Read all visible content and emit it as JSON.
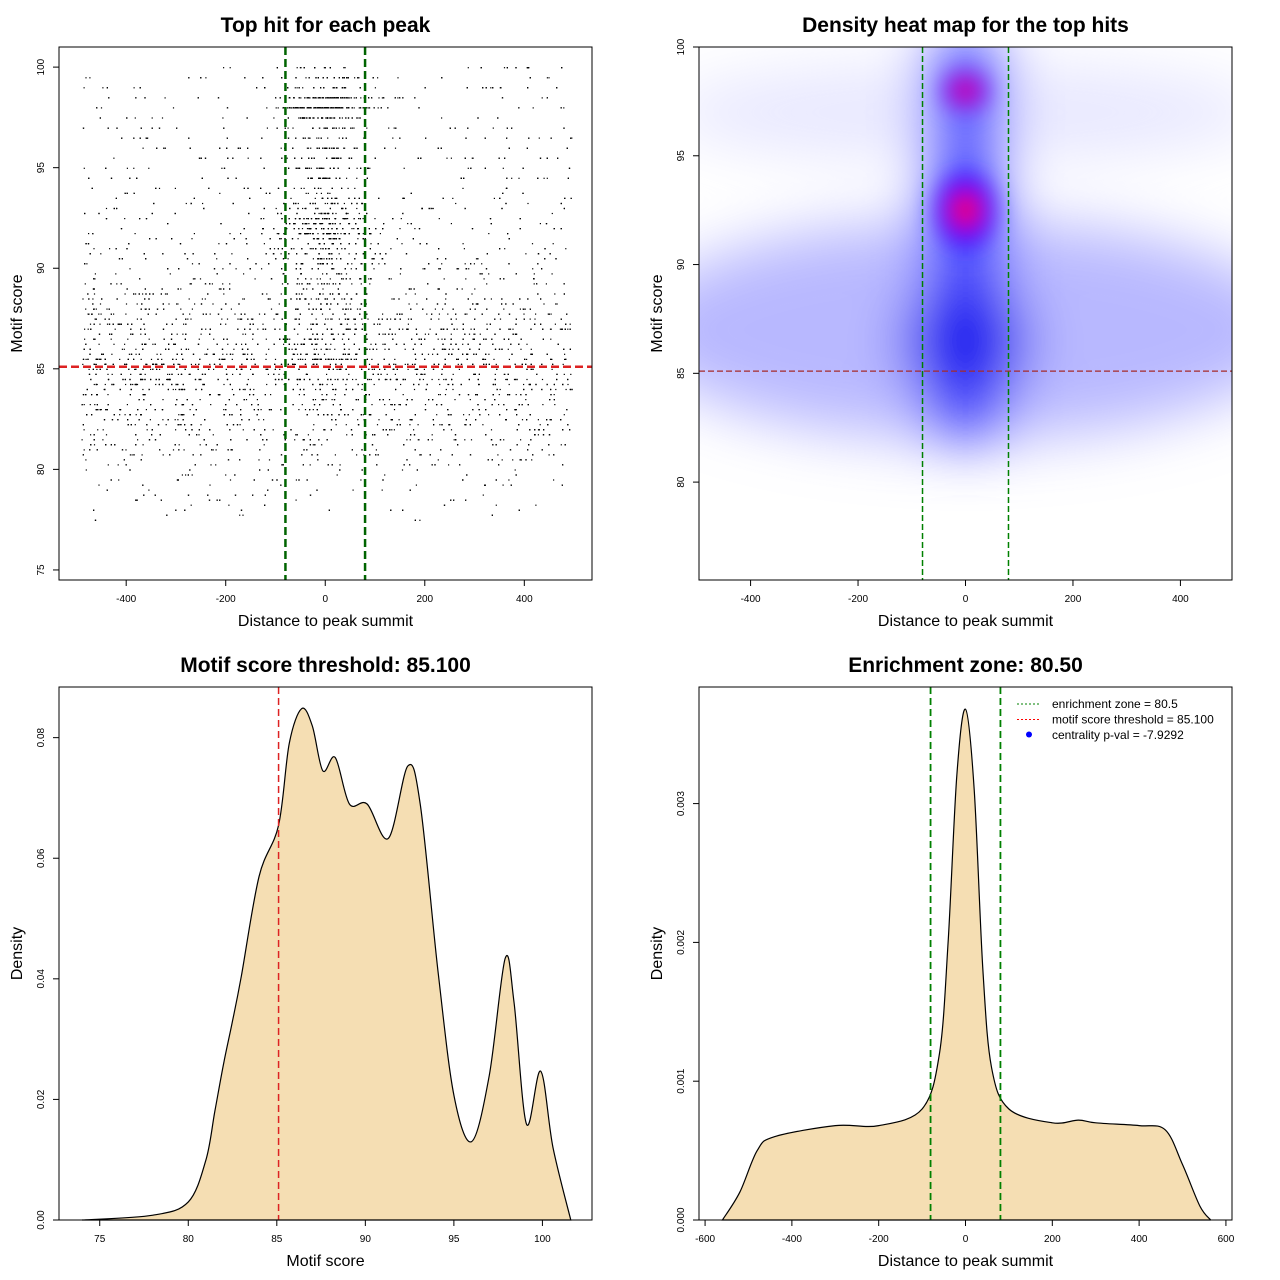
{
  "chart_data": [
    {
      "type": "scatter",
      "title": "Top hit for each peak",
      "xlabel": "Distance to peak summit",
      "ylabel": "Motif score",
      "xlim": [
        -535,
        536
      ],
      "ylim": [
        74.5,
        101
      ],
      "xticks": [
        -400,
        -200,
        0,
        200,
        400
      ],
      "yticks": [
        75,
        80,
        85,
        90,
        95,
        100
      ],
      "vlines": {
        "values": [
          -80,
          80
        ],
        "color": "#006400",
        "style": "dashed"
      },
      "hline": {
        "value": 85.1,
        "color": "#dd2222",
        "style": "dashed"
      },
      "point_color": "#000000"
    },
    {
      "type": "heatmap",
      "title": "Density heat map for the top hits",
      "xlabel": "Distance to peak summit",
      "ylabel": "Motif score",
      "xlim": [
        -496,
        496
      ],
      "ylim": [
        75.5,
        100
      ],
      "xticks": [
        -400,
        -200,
        0,
        200,
        400
      ],
      "yticks": [
        80,
        85,
        90,
        95,
        100
      ],
      "vlines": {
        "values": [
          -80,
          80
        ],
        "color": "#008000",
        "style": "dashed"
      },
      "hline": {
        "value": 85.1,
        "color": "#a52a2a",
        "style": "dashed"
      },
      "colors": [
        "#ffffff",
        "#0000ff",
        "#ff0000"
      ],
      "hotspots": [
        {
          "x": 0,
          "y": 92.5
        },
        {
          "x": 0,
          "y": 98
        }
      ]
    },
    {
      "type": "area",
      "title": "Motif score threshold: 85.100",
      "xlabel": "Motif score",
      "ylabel": "Density",
      "xlim": [
        72.7,
        102.8
      ],
      "ylim": [
        0,
        0.0884
      ],
      "xticks": [
        75,
        80,
        85,
        90,
        95,
        100
      ],
      "yticks": [
        0.0,
        0.02,
        0.04,
        0.06,
        0.08
      ],
      "ytick_labels": [
        "0.00",
        "0.02",
        "0.04",
        "0.06",
        "0.08"
      ],
      "fill": "#f5deb3",
      "vline": {
        "value": 85.1,
        "color": "#dd2222",
        "style": "dashed"
      },
      "x": [
        74,
        78,
        80,
        81,
        81.5,
        82,
        82.5,
        83,
        84,
        85.1,
        85.7,
        86.4,
        87,
        87.6,
        88.3,
        89.1,
        90.1,
        91.3,
        92.4,
        93.1,
        94.1,
        95,
        96,
        97,
        97.9,
        98.4,
        99.1,
        99.9,
        100.6,
        101.6
      ],
      "y": [
        0,
        0.0008,
        0.003,
        0.01,
        0.018,
        0.026,
        0.033,
        0.0405,
        0.057,
        0.0655,
        0.079,
        0.0848,
        0.082,
        0.0745,
        0.0767,
        0.069,
        0.069,
        0.0633,
        0.0753,
        0.069,
        0.0414,
        0.0207,
        0.013,
        0.024,
        0.0434,
        0.036,
        0.0159,
        0.0247,
        0.012,
        0
      ]
    },
    {
      "type": "area",
      "title": "Enrichment zone: 80.50",
      "xlabel": "Distance to peak summit",
      "ylabel": "Density",
      "xlim": [
        -614,
        614
      ],
      "ylim": [
        0,
        0.00384
      ],
      "xticks": [
        -600,
        -400,
        -200,
        0,
        200,
        400,
        600
      ],
      "yticks": [
        0,
        0.001,
        0.002,
        0.003
      ],
      "ytick_labels": [
        "0.000",
        "0.001",
        "0.002",
        "0.003"
      ],
      "fill": "#f5deb3",
      "vlines": {
        "values": [
          -80.5,
          80.5
        ],
        "color": "#008000",
        "style": "dashed"
      },
      "x": [
        -560,
        -520,
        -480,
        -440,
        -300,
        -200,
        -100,
        -60,
        -40,
        -20,
        0,
        20,
        40,
        60,
        100,
        200,
        260,
        300,
        400,
        460,
        500,
        540,
        565
      ],
      "y": [
        0,
        0.0002,
        0.0005,
        0.0006,
        0.00068,
        0.00068,
        0.0008,
        0.0012,
        0.002,
        0.0032,
        0.00368,
        0.0031,
        0.0018,
        0.0011,
        0.0008,
        0.0007,
        0.00072,
        0.0007,
        0.00068,
        0.00065,
        0.0004,
        0.0001,
        0
      ],
      "legend": {
        "position": "top-right",
        "items": [
          {
            "label": "enrichment zone = 80.5",
            "color": "#008000",
            "style": "dotted"
          },
          {
            "label": "motif score threshold = 85.100",
            "color": "#ff0000",
            "style": "dotted"
          },
          {
            "label": "centrality p-val = -7.9292",
            "color": "#0000ff",
            "style": "point"
          }
        ]
      }
    }
  ]
}
